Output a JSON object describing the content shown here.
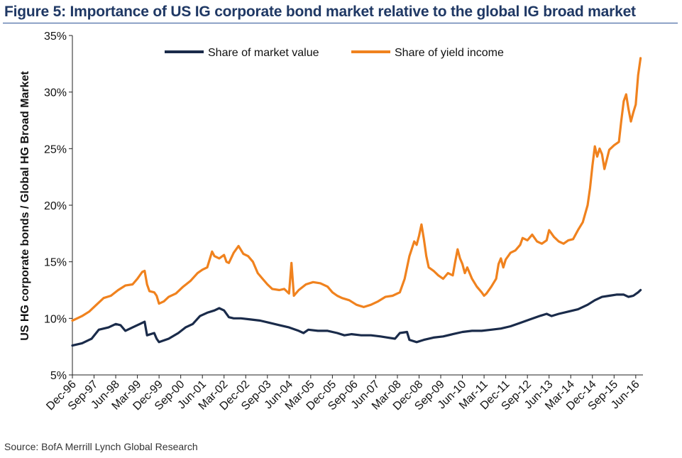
{
  "title": "Figure 5: Importance of US IG corporate bond market relative to the global IG broad market",
  "source": "Source: BofA Merrill Lynch Global Research",
  "chart_data": {
    "type": "line",
    "ylabel": "US HG corporate bonds / Global HG Broad Market",
    "xlabel": "",
    "ylim": [
      5,
      35
    ],
    "y_ticks": [
      "5%",
      "10%",
      "15%",
      "20%",
      "25%",
      "30%",
      "35%"
    ],
    "y_tick_values": [
      5,
      10,
      15,
      20,
      25,
      30,
      35
    ],
    "x_ticks": [
      "Dec-96",
      "Sep-97",
      "Jun-98",
      "Mar-99",
      "Dec-99",
      "Sep-00",
      "Jun-01",
      "Mar-02",
      "Dec-02",
      "Sep-03",
      "Jun-04",
      "Mar-05",
      "Dec-05",
      "Sep-06",
      "Jun-07",
      "Mar-08",
      "Dec-08",
      "Sep-09",
      "Jun-10",
      "Mar-11",
      "Dec-11",
      "Sep-12",
      "Jun-13",
      "Mar-14",
      "Dec-14",
      "Sep-15",
      "Jun-16"
    ],
    "x_tick_index": [
      0,
      9,
      18,
      27,
      36,
      45,
      54,
      63,
      72,
      81,
      90,
      99,
      108,
      117,
      126,
      135,
      144,
      153,
      162,
      171,
      180,
      189,
      198,
      207,
      216,
      225,
      234
    ],
    "x_range": [
      0,
      237
    ],
    "legend_position": "top",
    "series": [
      {
        "name": "Share of market value",
        "color": "#1a2b4a",
        "points": [
          [
            0,
            7.6
          ],
          [
            4,
            7.8
          ],
          [
            8,
            8.2
          ],
          [
            11,
            9.0
          ],
          [
            15,
            9.2
          ],
          [
            18,
            9.5
          ],
          [
            20,
            9.4
          ],
          [
            22,
            8.9
          ],
          [
            25,
            9.2
          ],
          [
            28,
            9.5
          ],
          [
            30,
            9.7
          ],
          [
            31,
            8.5
          ],
          [
            34,
            8.7
          ],
          [
            35,
            8.2
          ],
          [
            36,
            7.9
          ],
          [
            40,
            8.2
          ],
          [
            44,
            8.7
          ],
          [
            47,
            9.2
          ],
          [
            50,
            9.5
          ],
          [
            53,
            10.2
          ],
          [
            56,
            10.5
          ],
          [
            59,
            10.7
          ],
          [
            61,
            10.9
          ],
          [
            63,
            10.7
          ],
          [
            65,
            10.1
          ],
          [
            67,
            10.0
          ],
          [
            70,
            10.0
          ],
          [
            74,
            9.9
          ],
          [
            78,
            9.8
          ],
          [
            82,
            9.6
          ],
          [
            86,
            9.4
          ],
          [
            90,
            9.2
          ],
          [
            94,
            8.9
          ],
          [
            96,
            8.7
          ],
          [
            98,
            9.0
          ],
          [
            102,
            8.9
          ],
          [
            106,
            8.9
          ],
          [
            110,
            8.7
          ],
          [
            113,
            8.5
          ],
          [
            116,
            8.6
          ],
          [
            120,
            8.5
          ],
          [
            124,
            8.5
          ],
          [
            128,
            8.4
          ],
          [
            131,
            8.3
          ],
          [
            134,
            8.2
          ],
          [
            136,
            8.7
          ],
          [
            139,
            8.8
          ],
          [
            140,
            8.1
          ],
          [
            143,
            7.9
          ],
          [
            146,
            8.1
          ],
          [
            150,
            8.3
          ],
          [
            154,
            8.4
          ],
          [
            158,
            8.6
          ],
          [
            162,
            8.8
          ],
          [
            166,
            8.9
          ],
          [
            170,
            8.9
          ],
          [
            174,
            9.0
          ],
          [
            178,
            9.1
          ],
          [
            182,
            9.3
          ],
          [
            186,
            9.6
          ],
          [
            190,
            9.9
          ],
          [
            194,
            10.2
          ],
          [
            197,
            10.4
          ],
          [
            199,
            10.2
          ],
          [
            202,
            10.4
          ],
          [
            206,
            10.6
          ],
          [
            210,
            10.8
          ],
          [
            214,
            11.2
          ],
          [
            217,
            11.6
          ],
          [
            220,
            11.9
          ],
          [
            223,
            12.0
          ],
          [
            226,
            12.1
          ],
          [
            229,
            12.1
          ],
          [
            231,
            11.9
          ],
          [
            233,
            12.0
          ],
          [
            235,
            12.3
          ],
          [
            236,
            12.5
          ]
        ]
      },
      {
        "name": "Share of yield income",
        "color": "#f0821e",
        "points": [
          [
            0,
            9.8
          ],
          [
            2,
            10.0
          ],
          [
            4,
            10.2
          ],
          [
            7,
            10.6
          ],
          [
            10,
            11.2
          ],
          [
            13,
            11.8
          ],
          [
            16,
            12.0
          ],
          [
            19,
            12.5
          ],
          [
            22,
            12.9
          ],
          [
            25,
            13.0
          ],
          [
            27,
            13.5
          ],
          [
            29,
            14.1
          ],
          [
            30,
            14.2
          ],
          [
            31,
            13.0
          ],
          [
            32,
            12.4
          ],
          [
            34,
            12.3
          ],
          [
            35,
            12.0
          ],
          [
            36,
            11.3
          ],
          [
            38,
            11.5
          ],
          [
            40,
            11.9
          ],
          [
            43,
            12.2
          ],
          [
            46,
            12.8
          ],
          [
            49,
            13.3
          ],
          [
            52,
            14.0
          ],
          [
            54,
            14.3
          ],
          [
            56,
            14.5
          ],
          [
            57,
            15.2
          ],
          [
            58,
            15.9
          ],
          [
            59,
            15.5
          ],
          [
            61,
            15.3
          ],
          [
            63,
            15.6
          ],
          [
            64,
            15.0
          ],
          [
            65,
            14.9
          ],
          [
            67,
            15.8
          ],
          [
            69,
            16.4
          ],
          [
            71,
            15.7
          ],
          [
            73,
            15.5
          ],
          [
            75,
            15.0
          ],
          [
            77,
            14.0
          ],
          [
            79,
            13.5
          ],
          [
            81,
            13.0
          ],
          [
            83,
            12.6
          ],
          [
            86,
            12.5
          ],
          [
            88,
            12.6
          ],
          [
            90,
            12.2
          ],
          [
            91,
            14.9
          ],
          [
            92,
            12.0
          ],
          [
            94,
            12.5
          ],
          [
            97,
            13.0
          ],
          [
            100,
            13.2
          ],
          [
            103,
            13.1
          ],
          [
            106,
            12.8
          ],
          [
            108,
            12.3
          ],
          [
            110,
            12.0
          ],
          [
            112,
            11.8
          ],
          [
            115,
            11.6
          ],
          [
            118,
            11.2
          ],
          [
            121,
            11.0
          ],
          [
            124,
            11.2
          ],
          [
            127,
            11.5
          ],
          [
            130,
            11.9
          ],
          [
            133,
            12.0
          ],
          [
            136,
            12.3
          ],
          [
            138,
            13.5
          ],
          [
            140,
            15.5
          ],
          [
            142,
            16.8
          ],
          [
            143,
            16.5
          ],
          [
            144,
            17.3
          ],
          [
            145,
            18.3
          ],
          [
            146,
            17.0
          ],
          [
            147,
            15.5
          ],
          [
            148,
            14.5
          ],
          [
            150,
            14.2
          ],
          [
            152,
            13.8
          ],
          [
            154,
            13.5
          ],
          [
            156,
            14.0
          ],
          [
            158,
            13.8
          ],
          [
            159,
            15.0
          ],
          [
            160,
            16.1
          ],
          [
            161,
            15.3
          ],
          [
            162,
            14.8
          ],
          [
            163,
            14.0
          ],
          [
            164,
            14.5
          ],
          [
            166,
            13.5
          ],
          [
            168,
            12.8
          ],
          [
            170,
            12.3
          ],
          [
            171,
            12.0
          ],
          [
            172,
            12.2
          ],
          [
            174,
            12.8
          ],
          [
            176,
            13.5
          ],
          [
            177,
            14.8
          ],
          [
            178,
            15.3
          ],
          [
            179,
            14.5
          ],
          [
            180,
            15.2
          ],
          [
            182,
            15.8
          ],
          [
            184,
            16.0
          ],
          [
            186,
            16.5
          ],
          [
            187,
            17.1
          ],
          [
            189,
            16.9
          ],
          [
            191,
            17.4
          ],
          [
            193,
            16.8
          ],
          [
            195,
            16.6
          ],
          [
            197,
            16.9
          ],
          [
            198,
            17.8
          ],
          [
            200,
            17.2
          ],
          [
            202,
            16.8
          ],
          [
            204,
            16.6
          ],
          [
            206,
            16.9
          ],
          [
            208,
            17.0
          ],
          [
            210,
            17.8
          ],
          [
            212,
            18.5
          ],
          [
            214,
            20.0
          ],
          [
            215,
            21.5
          ],
          [
            216,
            23.5
          ],
          [
            217,
            25.2
          ],
          [
            218,
            24.3
          ],
          [
            219,
            25.0
          ],
          [
            220,
            24.5
          ],
          [
            221,
            23.2
          ],
          [
            223,
            24.9
          ],
          [
            225,
            25.3
          ],
          [
            227,
            25.6
          ],
          [
            228,
            27.5
          ],
          [
            229,
            29.2
          ],
          [
            230,
            29.8
          ],
          [
            231,
            28.5
          ],
          [
            232,
            27.4
          ],
          [
            233,
            28.2
          ],
          [
            234,
            28.9
          ],
          [
            235,
            31.5
          ],
          [
            236,
            33.0
          ]
        ]
      }
    ]
  }
}
